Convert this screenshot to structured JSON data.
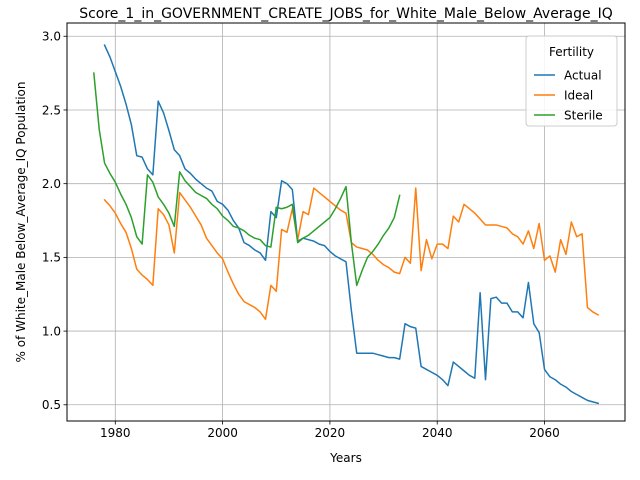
{
  "chart_data": {
    "type": "line",
    "title": "Score_1_in_GOVERNMENT_CREATE_JOBS_for_White_Male_Below_Average_IQ",
    "xlabel": "Years",
    "ylabel": "% of White_Male Below_Average_IQ Population",
    "xlim": [
      1971,
      2075
    ],
    "ylim": [
      0.39,
      3.09
    ],
    "x_ticks": [
      1980,
      2000,
      2020,
      2040,
      2060
    ],
    "y_ticks": [
      0.5,
      1.0,
      1.5,
      2.0,
      2.5,
      3.0
    ],
    "grid": true,
    "legend": {
      "title": "Fertility",
      "placement": "top-right"
    },
    "series": [
      {
        "name": "Actual",
        "color": "#1f77b4",
        "points": [
          [
            1978,
            2.94
          ],
          [
            1979,
            2.86
          ],
          [
            1980,
            2.76
          ],
          [
            1981,
            2.66
          ],
          [
            1982,
            2.54
          ],
          [
            1983,
            2.4
          ],
          [
            1984,
            2.19
          ],
          [
            1985,
            2.18
          ],
          [
            1986,
            2.1
          ],
          [
            1987,
            2.06
          ],
          [
            1988,
            2.56
          ],
          [
            1989,
            2.48
          ],
          [
            1990,
            2.36
          ],
          [
            1991,
            2.23
          ],
          [
            1992,
            2.19
          ],
          [
            1993,
            2.1
          ],
          [
            1994,
            2.07
          ],
          [
            1995,
            2.03
          ],
          [
            1996,
            2.0
          ],
          [
            1997,
            1.97
          ],
          [
            1998,
            1.95
          ],
          [
            1999,
            1.88
          ],
          [
            2000,
            1.86
          ],
          [
            2001,
            1.82
          ],
          [
            2002,
            1.75
          ],
          [
            2003,
            1.7
          ],
          [
            2004,
            1.6
          ],
          [
            2005,
            1.58
          ],
          [
            2006,
            1.55
          ],
          [
            2007,
            1.53
          ],
          [
            2008,
            1.48
          ],
          [
            2009,
            1.81
          ],
          [
            2010,
            1.77
          ],
          [
            2011,
            2.02
          ],
          [
            2012,
            2.0
          ],
          [
            2013,
            1.96
          ],
          [
            2014,
            1.61
          ],
          [
            2015,
            1.63
          ],
          [
            2016,
            1.62
          ],
          [
            2017,
            1.61
          ],
          [
            2018,
            1.59
          ],
          [
            2019,
            1.58
          ],
          [
            2020,
            1.54
          ],
          [
            2021,
            1.51
          ],
          [
            2022,
            1.49
          ],
          [
            2023,
            1.47
          ],
          [
            2024,
            1.14
          ],
          [
            2025,
            0.85
          ],
          [
            2026,
            0.85
          ],
          [
            2027,
            0.85
          ],
          [
            2028,
            0.85
          ],
          [
            2029,
            0.84
          ],
          [
            2030,
            0.83
          ],
          [
            2031,
            0.82
          ],
          [
            2032,
            0.82
          ],
          [
            2033,
            0.81
          ],
          [
            2034,
            1.05
          ],
          [
            2035,
            1.03
          ],
          [
            2036,
            1.02
          ],
          [
            2037,
            0.76
          ],
          [
            2038,
            0.74
          ],
          [
            2039,
            0.72
          ],
          [
            2040,
            0.7
          ],
          [
            2041,
            0.67
          ],
          [
            2042,
            0.63
          ],
          [
            2043,
            0.79
          ],
          [
            2044,
            0.76
          ],
          [
            2045,
            0.73
          ],
          [
            2046,
            0.7
          ],
          [
            2047,
            0.68
          ],
          [
            2048,
            1.26
          ],
          [
            2049,
            0.67
          ],
          [
            2050,
            1.22
          ],
          [
            2051,
            1.23
          ],
          [
            2052,
            1.19
          ],
          [
            2053,
            1.19
          ],
          [
            2054,
            1.13
          ],
          [
            2055,
            1.13
          ],
          [
            2056,
            1.09
          ],
          [
            2057,
            1.33
          ],
          [
            2058,
            1.05
          ],
          [
            2059,
            0.99
          ],
          [
            2060,
            0.74
          ],
          [
            2061,
            0.69
          ],
          [
            2062,
            0.67
          ],
          [
            2063,
            0.64
          ],
          [
            2064,
            0.62
          ],
          [
            2065,
            0.59
          ],
          [
            2066,
            0.57
          ],
          [
            2067,
            0.55
          ],
          [
            2068,
            0.53
          ],
          [
            2069,
            0.52
          ],
          [
            2070,
            0.51
          ]
        ]
      },
      {
        "name": "Ideal",
        "color": "#ff7f0e",
        "points": [
          [
            1978,
            1.89
          ],
          [
            1979,
            1.85
          ],
          [
            1980,
            1.8
          ],
          [
            1981,
            1.73
          ],
          [
            1982,
            1.67
          ],
          [
            1983,
            1.56
          ],
          [
            1984,
            1.42
          ],
          [
            1985,
            1.38
          ],
          [
            1986,
            1.35
          ],
          [
            1987,
            1.31
          ],
          [
            1988,
            1.83
          ],
          [
            1989,
            1.79
          ],
          [
            1990,
            1.72
          ],
          [
            1991,
            1.53
          ],
          [
            1992,
            1.94
          ],
          [
            1993,
            1.89
          ],
          [
            1994,
            1.84
          ],
          [
            1995,
            1.78
          ],
          [
            1996,
            1.72
          ],
          [
            1997,
            1.63
          ],
          [
            1998,
            1.58
          ],
          [
            1999,
            1.53
          ],
          [
            2000,
            1.49
          ],
          [
            2001,
            1.4
          ],
          [
            2002,
            1.32
          ],
          [
            2003,
            1.25
          ],
          [
            2004,
            1.2
          ],
          [
            2005,
            1.18
          ],
          [
            2006,
            1.16
          ],
          [
            2007,
            1.13
          ],
          [
            2008,
            1.08
          ],
          [
            2009,
            1.31
          ],
          [
            2010,
            1.27
          ],
          [
            2011,
            1.69
          ],
          [
            2012,
            1.67
          ],
          [
            2013,
            1.83
          ],
          [
            2014,
            1.62
          ],
          [
            2015,
            1.81
          ],
          [
            2016,
            1.79
          ],
          [
            2017,
            1.97
          ],
          [
            2018,
            1.94
          ],
          [
            2019,
            1.91
          ],
          [
            2020,
            1.88
          ],
          [
            2021,
            1.85
          ],
          [
            2022,
            1.82
          ],
          [
            2023,
            1.8
          ],
          [
            2024,
            1.6
          ],
          [
            2025,
            1.57
          ],
          [
            2026,
            1.56
          ],
          [
            2027,
            1.55
          ],
          [
            2028,
            1.52
          ],
          [
            2029,
            1.48
          ],
          [
            2030,
            1.45
          ],
          [
            2031,
            1.43
          ],
          [
            2032,
            1.4
          ],
          [
            2033,
            1.39
          ],
          [
            2034,
            1.5
          ],
          [
            2035,
            1.46
          ],
          [
            2036,
            1.97
          ],
          [
            2037,
            1.41
          ],
          [
            2038,
            1.62
          ],
          [
            2039,
            1.49
          ],
          [
            2040,
            1.59
          ],
          [
            2041,
            1.59
          ],
          [
            2042,
            1.56
          ],
          [
            2043,
            1.78
          ],
          [
            2044,
            1.74
          ],
          [
            2045,
            1.86
          ],
          [
            2046,
            1.83
          ],
          [
            2047,
            1.8
          ],
          [
            2048,
            1.76
          ],
          [
            2049,
            1.72
          ],
          [
            2050,
            1.72
          ],
          [
            2051,
            1.72
          ],
          [
            2052,
            1.71
          ],
          [
            2053,
            1.7
          ],
          [
            2054,
            1.66
          ],
          [
            2055,
            1.64
          ],
          [
            2056,
            1.59
          ],
          [
            2057,
            1.68
          ],
          [
            2058,
            1.56
          ],
          [
            2059,
            1.73
          ],
          [
            2060,
            1.48
          ],
          [
            2061,
            1.51
          ],
          [
            2062,
            1.4
          ],
          [
            2063,
            1.62
          ],
          [
            2064,
            1.52
          ],
          [
            2065,
            1.74
          ],
          [
            2066,
            1.64
          ],
          [
            2067,
            1.66
          ],
          [
            2068,
            1.16
          ],
          [
            2069,
            1.13
          ],
          [
            2070,
            1.11
          ]
        ]
      },
      {
        "name": "Sterile",
        "color": "#2ca02c",
        "points": [
          [
            1976,
            2.75
          ],
          [
            1977,
            2.37
          ],
          [
            1978,
            2.14
          ],
          [
            1979,
            2.07
          ],
          [
            1980,
            2.01
          ],
          [
            1981,
            1.93
          ],
          [
            1982,
            1.86
          ],
          [
            1983,
            1.77
          ],
          [
            1984,
            1.64
          ],
          [
            1985,
            1.59
          ],
          [
            1986,
            2.06
          ],
          [
            1987,
            2.01
          ],
          [
            1988,
            1.91
          ],
          [
            1989,
            1.86
          ],
          [
            1990,
            1.8
          ],
          [
            1991,
            1.71
          ],
          [
            1992,
            2.08
          ],
          [
            1993,
            2.02
          ],
          [
            1994,
            1.98
          ],
          [
            1995,
            1.94
          ],
          [
            1996,
            1.92
          ],
          [
            1997,
            1.9
          ],
          [
            1998,
            1.86
          ],
          [
            1999,
            1.83
          ],
          [
            2000,
            1.78
          ],
          [
            2001,
            1.75
          ],
          [
            2002,
            1.71
          ],
          [
            2003,
            1.7
          ],
          [
            2004,
            1.68
          ],
          [
            2005,
            1.65
          ],
          [
            2006,
            1.63
          ],
          [
            2007,
            1.62
          ],
          [
            2008,
            1.58
          ],
          [
            2009,
            1.57
          ],
          [
            2010,
            1.84
          ],
          [
            2011,
            1.83
          ],
          [
            2012,
            1.84
          ],
          [
            2013,
            1.86
          ],
          [
            2014,
            1.6
          ],
          [
            2015,
            1.63
          ],
          [
            2016,
            1.65
          ],
          [
            2017,
            1.68
          ],
          [
            2018,
            1.71
          ],
          [
            2019,
            1.74
          ],
          [
            2020,
            1.77
          ],
          [
            2021,
            1.83
          ],
          [
            2022,
            1.9
          ],
          [
            2023,
            1.98
          ],
          [
            2024,
            1.6
          ],
          [
            2025,
            1.31
          ],
          [
            2026,
            1.41
          ],
          [
            2027,
            1.5
          ],
          [
            2028,
            1.54
          ],
          [
            2029,
            1.59
          ],
          [
            2030,
            1.65
          ],
          [
            2031,
            1.7
          ],
          [
            2032,
            1.77
          ],
          [
            2033,
            1.92
          ]
        ]
      }
    ]
  }
}
